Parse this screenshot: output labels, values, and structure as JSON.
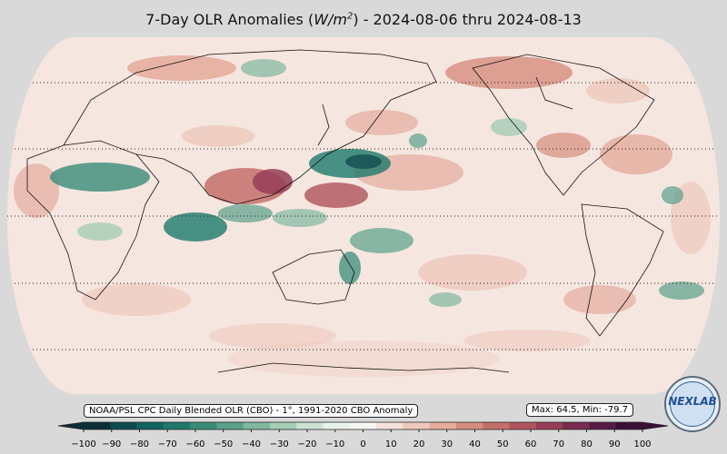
{
  "title": {
    "prefix": "7-Day OLR Anomalies (",
    "unit_base": "W/m",
    "unit_exp": "2",
    "suffix": ") - 2024-08-06 thru 2024-08-13"
  },
  "source_note": "NOAA/PSL CPC Daily Blended OLR (CBO) - 1°, 1991-2020 CBO Anomaly",
  "stats": "Max: 64.5,  Min: -79.7",
  "logo_text": "NEXLAB",
  "colorbar": {
    "ticks": [
      -100,
      -90,
      -80,
      -70,
      -60,
      -50,
      -40,
      -30,
      -20,
      -10,
      0,
      10,
      20,
      30,
      40,
      50,
      60,
      70,
      80,
      90,
      100
    ],
    "tick_labels": [
      "−100",
      "−90",
      "−80",
      "−70",
      "−60",
      "−50",
      "−40",
      "−30",
      "−20",
      "−10",
      "0",
      "10",
      "20",
      "30",
      "40",
      "50",
      "60",
      "70",
      "80",
      "90",
      "100"
    ],
    "colors": [
      "#0c2e36",
      "#0f4a4e",
      "#11635e",
      "#1c7a6b",
      "#3a8c78",
      "#5aa08a",
      "#80b79f",
      "#a6cdb6",
      "#cbe2d3",
      "#e7f2ea",
      "#f7f5f1",
      "#f5e1dc",
      "#eec8bd",
      "#e4ab9c",
      "#d68d7e",
      "#c46f6a",
      "#b0535d",
      "#963d57",
      "#7a2a4f",
      "#5a1a45",
      "#3a0f35"
    ]
  },
  "map": {
    "graticule": "dotted latitude lines every 30°",
    "projection": "Robinson, centered on the Pacific"
  }
}
